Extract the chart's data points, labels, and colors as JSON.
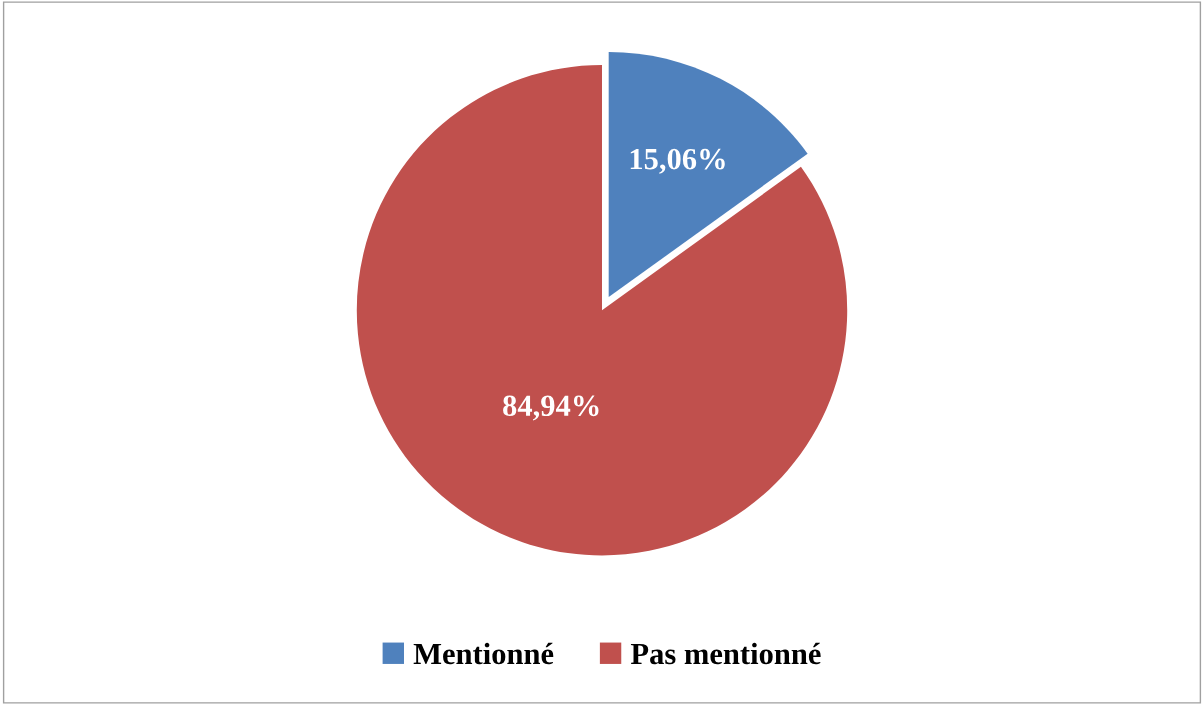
{
  "chart_data": {
    "type": "pie",
    "categories": [
      "Mentionné",
      "Pas mentionné"
    ],
    "values": [
      15.06,
      84.94
    ],
    "colors": [
      "#4f81bd",
      "#c0504d"
    ],
    "value_labels": [
      "15,06%",
      "84,94%"
    ],
    "legend": "bottom"
  }
}
